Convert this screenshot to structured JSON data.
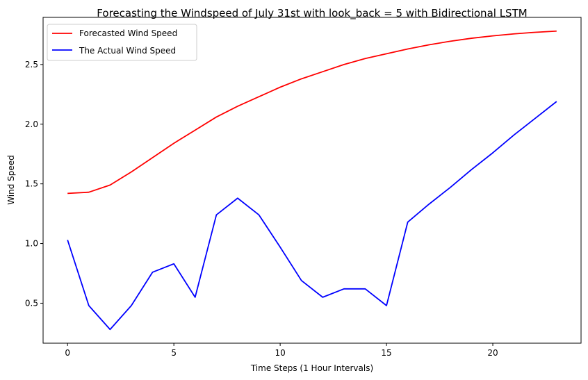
{
  "chart_data": {
    "type": "line",
    "title": "Forecasting the Windspeed of July 31st with look_back = 5 with Bidirectional LSTM",
    "xlabel": "Time Steps (1 Hour Intervals)",
    "ylabel": "Wind Speed",
    "xlim": [
      -1.15,
      24.15
    ],
    "ylim": [
      0.165,
      2.895
    ],
    "xticks": [
      0,
      5,
      10,
      15,
      20
    ],
    "yticks": [
      0.5,
      1.0,
      1.5,
      2.0,
      2.5
    ],
    "xtick_labels": [
      "0",
      "5",
      "10",
      "15",
      "20"
    ],
    "ytick_labels": [
      "0.5",
      "1.0",
      "1.5",
      "2.0",
      "2.5"
    ],
    "grid": false,
    "legend_position": "top-left",
    "x": [
      0,
      1,
      2,
      3,
      4,
      5,
      6,
      7,
      8,
      9,
      10,
      11,
      12,
      13,
      14,
      15,
      16,
      17,
      18,
      19,
      20,
      21,
      22,
      23
    ],
    "series": [
      {
        "name": "Forecasted Wind Speed",
        "color": "#ff0000",
        "values": [
          1.42,
          1.43,
          1.49,
          1.6,
          1.72,
          1.84,
          1.95,
          2.06,
          2.15,
          2.23,
          2.31,
          2.38,
          2.44,
          2.5,
          2.55,
          2.59,
          2.63,
          2.665,
          2.695,
          2.72,
          2.74,
          2.757,
          2.77,
          2.78
        ]
      },
      {
        "name": "The Actual Wind Speed",
        "color": "#0000ff",
        "values": [
          1.03,
          0.48,
          0.28,
          0.48,
          0.76,
          0.83,
          0.55,
          1.24,
          1.38,
          1.24,
          0.97,
          0.69,
          0.55,
          0.62,
          0.62,
          0.48,
          1.18,
          1.33,
          1.47,
          1.62,
          1.76,
          1.91,
          2.05,
          2.19
        ]
      }
    ]
  }
}
